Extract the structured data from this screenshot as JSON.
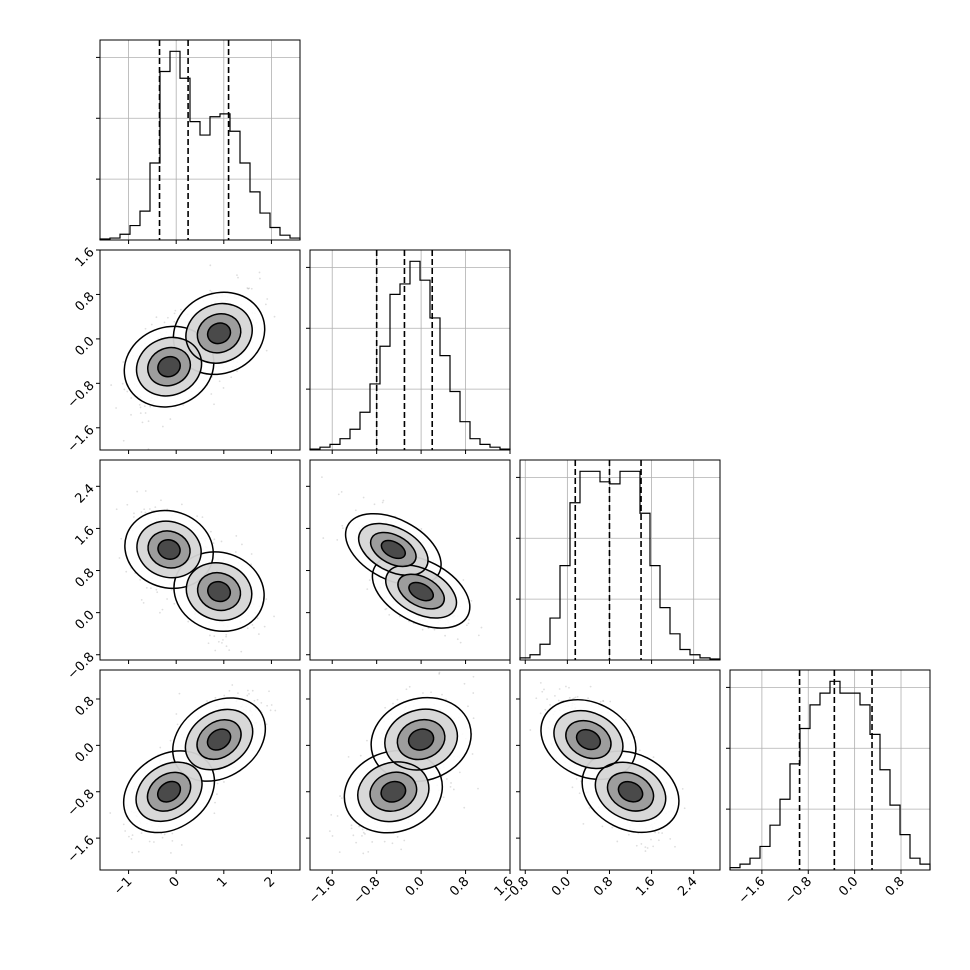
{
  "chart_data": {
    "type": "corner",
    "style": {
      "grid": true,
      "quantile_line_style": "dashed",
      "contours": true,
      "scatter_points": true,
      "color": "#000000"
    },
    "parameters": [
      {
        "range": [
          -1.6,
          2.6
        ],
        "ticks": [
          -1,
          0,
          1,
          2
        ],
        "tick_labels": [
          "−1",
          "0",
          "1",
          "2"
        ]
      },
      {
        "range": [
          -2.0,
          1.6
        ],
        "ticks": [
          -1.6,
          -0.8,
          0.0,
          0.8,
          1.6
        ],
        "tick_labels": [
          "−1.6",
          "−0.8",
          "0.0",
          "0.8",
          "1.6"
        ]
      },
      {
        "range": [
          -0.9,
          2.9
        ],
        "ticks": [
          -0.8,
          0.0,
          0.8,
          1.6,
          2.4
        ],
        "tick_labels": [
          "−0.8",
          "0.0",
          "0.8",
          "1.6",
          "2.4"
        ]
      },
      {
        "range": [
          -2.15,
          1.3
        ],
        "ticks": [
          -1.6,
          -0.8,
          0.0,
          0.8
        ],
        "tick_labels": [
          "−1.6",
          "−0.8",
          "0.0",
          "0.8"
        ]
      }
    ],
    "histograms": [
      {
        "bin_start": -1.6,
        "bin_width": 0.21,
        "counts": [
          1,
          2,
          6,
          15,
          30,
          80,
          175,
          196,
          168,
          123,
          109,
          128,
          131,
          113,
          80,
          50,
          28,
          13,
          5,
          2
        ],
        "quantiles": [
          -0.35,
          0.25,
          1.1
        ]
      },
      {
        "bin_start": -2.0,
        "bin_width": 0.18,
        "counts": [
          1,
          3,
          6,
          12,
          22,
          40,
          70,
          110,
          165,
          176,
          200,
          180,
          140,
          100,
          62,
          30,
          12,
          6,
          3,
          1
        ],
        "quantiles": [
          -0.8,
          -0.3,
          0.2
        ]
      },
      {
        "bin_start": -0.9,
        "bin_width": 0.19,
        "counts": [
          2,
          5,
          15,
          40,
          90,
          150,
          180,
          180,
          170,
          168,
          180,
          180,
          140,
          90,
          50,
          25,
          10,
          5,
          2,
          1
        ],
        "quantiles": [
          0.15,
          0.8,
          1.4
        ]
      },
      {
        "bin_start": -2.15,
        "bin_width": 0.1725,
        "counts": [
          2,
          5,
          10,
          20,
          38,
          60,
          90,
          120,
          140,
          150,
          160,
          150,
          150,
          140,
          115,
          85,
          55,
          30,
          10,
          5
        ],
        "quantiles": [
          -0.95,
          -0.35,
          0.3
        ]
      }
    ],
    "joint": [
      {
        "row": 1,
        "col": 0,
        "modes": [
          [
            -0.15,
            -0.5
          ],
          [
            0.9,
            0.1
          ]
        ],
        "spread": 0.42,
        "corr": 0.35
      },
      {
        "row": 2,
        "col": 0,
        "modes": [
          [
            -0.15,
            1.2
          ],
          [
            0.9,
            0.4
          ]
        ],
        "spread": 0.42,
        "corr": -0.3
      },
      {
        "row": 2,
        "col": 1,
        "modes": [
          [
            -0.5,
            1.2
          ],
          [
            0.0,
            0.4
          ]
        ],
        "spread": 0.38,
        "corr": -0.55
      },
      {
        "row": 3,
        "col": 0,
        "modes": [
          [
            -0.15,
            -0.8
          ],
          [
            0.9,
            0.1
          ]
        ],
        "spread": 0.42,
        "corr": 0.55
      },
      {
        "row": 3,
        "col": 1,
        "modes": [
          [
            -0.5,
            -0.8
          ],
          [
            0.0,
            0.1
          ]
        ],
        "spread": 0.4,
        "corr": 0.3
      },
      {
        "row": 3,
        "col": 2,
        "modes": [
          [
            0.4,
            0.1
          ],
          [
            1.2,
            -0.8
          ]
        ],
        "spread": 0.4,
        "corr": -0.45
      }
    ]
  }
}
